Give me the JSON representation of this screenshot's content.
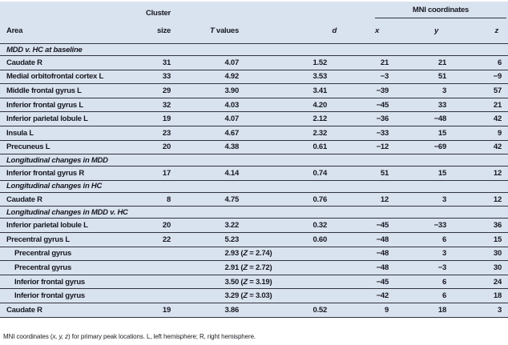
{
  "colors": {
    "table_bg": "#d9e3f0",
    "text": "#17171f",
    "line": "#32323e"
  },
  "header": {
    "area": "Area",
    "cluster_line1": "Cluster",
    "cluster_line2": "size",
    "t_italic": "T",
    "t_rest": " values",
    "d": "d",
    "mni_group": "MNI coordinates",
    "x": "x",
    "y": "y",
    "z": "z"
  },
  "table": {
    "rows": [
      {
        "type": "section",
        "label": "MDD v. HC at baseline"
      },
      {
        "type": "data",
        "area": "Caudate R",
        "cluster": "31",
        "t": "4.07",
        "d": "1.52",
        "x": "21",
        "y": "21",
        "z": "6"
      },
      {
        "type": "data",
        "area": "Medial orbitofrontal cortex L",
        "cluster": "33",
        "t": "4.92",
        "d": "3.53",
        "x": "−3",
        "y": "51",
        "z": "−9"
      },
      {
        "type": "data",
        "area": "Middle frontal gyrus L",
        "cluster": "29",
        "t": "3.90",
        "d": "3.41",
        "x": "−39",
        "y": "3",
        "z": "57"
      },
      {
        "type": "data",
        "area": "Inferior frontal gyrus L",
        "cluster": "32",
        "t": "4.03",
        "d": "4.20",
        "x": "−45",
        "y": "33",
        "z": "21"
      },
      {
        "type": "data",
        "area": "Inferior parietal lobule L",
        "cluster": "19",
        "t": "4.07",
        "d": "2.12",
        "x": "−36",
        "y": "−48",
        "z": "42"
      },
      {
        "type": "data",
        "area": "Insula L",
        "cluster": "23",
        "t": "4.67",
        "d": "2.32",
        "x": "−33",
        "y": "15",
        "z": "9"
      },
      {
        "type": "data",
        "area": "Precuneus L",
        "cluster": "20",
        "t": "4.38",
        "d": "0.61",
        "x": "−12",
        "y": "−69",
        "z": "42"
      },
      {
        "type": "section",
        "label": "Longitudinal changes in MDD"
      },
      {
        "type": "data",
        "area": "Inferior frontal gyrus R",
        "cluster": "17",
        "t": "4.14",
        "d": "0.74",
        "x": "51",
        "y": "15",
        "z": "12"
      },
      {
        "type": "section",
        "label": "Longitudinal changes in HC"
      },
      {
        "type": "data",
        "area": "Caudate R",
        "cluster": "8",
        "t": "4.75",
        "d": "0.76",
        "x": "12",
        "y": "3",
        "z": "12"
      },
      {
        "type": "section",
        "label": "Longitudinal changes in MDD v. HC"
      },
      {
        "type": "data",
        "area": "Inferior parietal lobule L",
        "cluster": "20",
        "t": "3.22",
        "d": "0.32",
        "x": "−45",
        "y": "−33",
        "z": "36"
      },
      {
        "type": "data",
        "area": "Precentral gyrus L",
        "cluster": "22",
        "t": "5.23",
        "d": "0.60",
        "x": "−48",
        "y": "6",
        "z": "15"
      },
      {
        "type": "data",
        "indent": true,
        "area": "Precentral gyrus",
        "cluster": "",
        "t": "2.93",
        "z_score": "2.74",
        "d": "",
        "x": "−48",
        "y": "3",
        "z": "30"
      },
      {
        "type": "data",
        "indent": true,
        "area": "Precentral gyrus",
        "cluster": "",
        "t": "2.91",
        "z_score": "2.72",
        "d": "",
        "x": "−48",
        "y": "−3",
        "z": "30"
      },
      {
        "type": "data",
        "indent": true,
        "area": "Inferior frontal gyrus",
        "cluster": "",
        "t": "3.50",
        "z_score": "3.19",
        "d": "",
        "x": "−45",
        "y": "6",
        "z": "24"
      },
      {
        "type": "data",
        "indent": true,
        "area": "Inferior frontal gyrus",
        "cluster": "",
        "t": "3.29",
        "z_score": "3.03",
        "d": "",
        "x": "−42",
        "y": "6",
        "z": "18"
      },
      {
        "type": "data",
        "area": "Caudate R",
        "cluster": "19",
        "t": "3.86",
        "d": "0.52",
        "x": "9",
        "y": "18",
        "z": "3"
      }
    ],
    "z_score_prefix": " (",
    "z_score_symbol": "Z",
    "z_score_equals": " = ",
    "z_score_close": ")"
  },
  "footnote": {
    "pre": "MNI coordinates (",
    "italic": "x, y, z",
    "post": ") for primary peak locations. L, left hemisphere; R, right hemisphere."
  }
}
